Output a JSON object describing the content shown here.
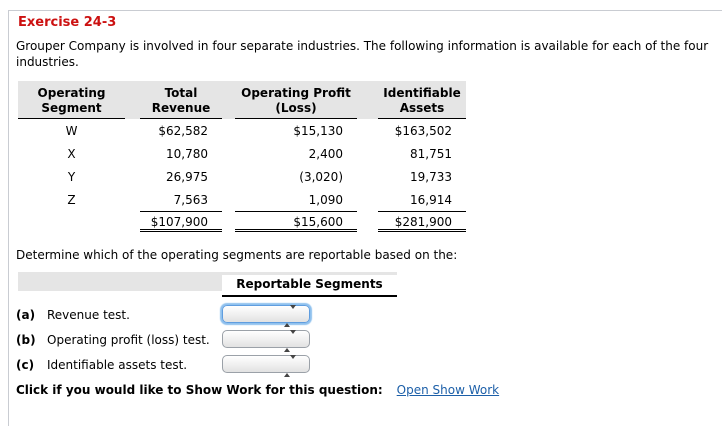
{
  "page": {
    "title": "Exercise 24-3",
    "intro": "Grouper Company is involved in four separate industries. The following information is available for each of the four industries.",
    "determine_text": "Determine which of the operating segments are reportable based on the:",
    "show_work": {
      "label": "Click if you would like to Show Work for this question:",
      "link": "Open Show Work"
    }
  },
  "segment_table": {
    "headers": [
      {
        "line1": "Operating",
        "line2": "Segment"
      },
      {
        "line1": "Total",
        "line2": "Revenue"
      },
      {
        "line1": "Operating Profit",
        "line2": "(Loss)"
      },
      {
        "line1": "Identifiable",
        "line2": "Assets"
      }
    ],
    "rows": [
      {
        "segment": "W",
        "revenue": "$62,582",
        "profit": "$15,130",
        "assets": "$163,502"
      },
      {
        "segment": "X",
        "revenue": "10,780",
        "profit": "2,400",
        "assets": "81,751"
      },
      {
        "segment": "Y",
        "revenue": "26,975",
        "profit": "(3,020)",
        "assets": "19,733"
      },
      {
        "segment": "Z",
        "revenue": "7,563",
        "profit": "1,090",
        "assets": "16,914"
      }
    ],
    "totals": {
      "revenue": "$107,900",
      "profit": "$15,600",
      "assets": "$281,900"
    }
  },
  "tests": {
    "column_header": "Reportable Segments",
    "rows": [
      {
        "id": "(a)",
        "label": "Revenue test.",
        "value": ""
      },
      {
        "id": "(b)",
        "label": "Operating profit (loss) test.",
        "value": ""
      },
      {
        "id": "(c)",
        "label": "Identifiable assets test.",
        "value": ""
      }
    ]
  },
  "colors": {
    "title_red": "#cc1111",
    "band_gray": "#e5e5e5",
    "link_blue": "#1c5fa8",
    "panel_border": "#c9ccd2",
    "focus_ring": "#8fc1ee"
  }
}
